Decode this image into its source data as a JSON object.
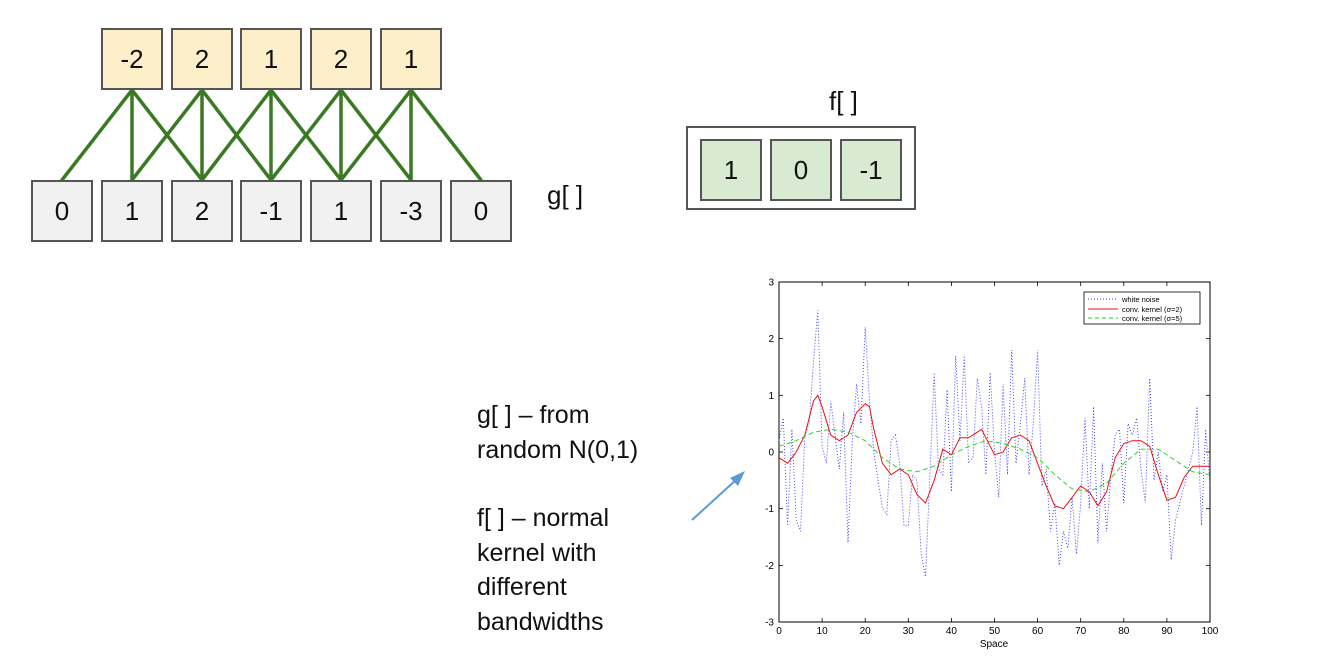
{
  "output_values": [
    "-2",
    "2",
    "1",
    "2",
    "1"
  ],
  "input_values": [
    "0",
    "1",
    "2",
    "-1",
    "1",
    "-3",
    "0"
  ],
  "kernel_values": [
    "1",
    "0",
    "-1"
  ],
  "labels": {
    "g": "g[ ]",
    "f": "f[ ]"
  },
  "description": {
    "line1": "g[ ] – from",
    "line2": "random N(0,1)",
    "line3": "f[ ] – normal",
    "line4": "kernel with",
    "line5": "different",
    "line6": "bandwidths"
  },
  "colors": {
    "connection": "#3b7a24",
    "output_fill": "#fcefc9",
    "input_fill": "#f1f1f1",
    "kernel_fill": "#d9ead3",
    "arrow": "#5b9bd5"
  },
  "chart_data": {
    "type": "line",
    "xlabel": "Space",
    "ylabel": "",
    "xlim": [
      0,
      100
    ],
    "ylim": [
      -3,
      3
    ],
    "x_ticks": [
      "0",
      "10",
      "20",
      "30",
      "40",
      "50",
      "60",
      "70",
      "80",
      "90",
      "100"
    ],
    "y_ticks": [
      "-3",
      "-2",
      "-1",
      "0",
      "1",
      "2",
      "3"
    ],
    "legend_position": "top-right",
    "legend": [
      "white noise",
      "conv. kernel (σ=2)",
      "conv. kernel (σ=5)"
    ],
    "series": [
      {
        "name": "white noise",
        "color": "#3333ff",
        "style": "dotted",
        "x": [
          0,
          1,
          2,
          3,
          4,
          5,
          6,
          7,
          8,
          9,
          10,
          11,
          12,
          13,
          14,
          15,
          16,
          17,
          18,
          19,
          20,
          21,
          22,
          23,
          24,
          25,
          26,
          27,
          28,
          29,
          30,
          31,
          32,
          33,
          34,
          35,
          36,
          37,
          38,
          39,
          40,
          41,
          42,
          43,
          44,
          45,
          46,
          47,
          48,
          49,
          50,
          51,
          52,
          53,
          54,
          55,
          56,
          57,
          58,
          59,
          60,
          61,
          62,
          63,
          64,
          65,
          66,
          67,
          68,
          69,
          70,
          71,
          72,
          73,
          74,
          75,
          76,
          77,
          78,
          79,
          80,
          81,
          82,
          83,
          84,
          85,
          86,
          87,
          88,
          89,
          90,
          91,
          92,
          93,
          94,
          95,
          96,
          97,
          98,
          99,
          100
        ],
        "y": [
          0.2,
          0.6,
          -1.3,
          0.4,
          -1.2,
          -1.4,
          0.3,
          0.5,
          1.6,
          2.5,
          0.1,
          -0.2,
          0.9,
          0.3,
          -0.3,
          0.7,
          -1.6,
          0.2,
          1.2,
          0.5,
          2.2,
          0.9,
          0.0,
          -0.5,
          -1.0,
          -1.1,
          0.2,
          0.3,
          -0.2,
          -1.3,
          -1.3,
          -0.4,
          -0.5,
          -1.8,
          -2.2,
          -0.4,
          1.4,
          -0.3,
          -0.4,
          1.1,
          -0.7,
          1.7,
          0.2,
          1.7,
          -0.2,
          -0.1,
          1.3,
          0.8,
          -0.4,
          1.4,
          0.0,
          -0.8,
          1.2,
          -0.4,
          1.8,
          -0.2,
          0.5,
          1.3,
          -0.4,
          0.5,
          1.8,
          -0.6,
          -0.3,
          -1.4,
          -0.9,
          -2.0,
          -1.4,
          -1.7,
          -0.8,
          -1.8,
          -0.9,
          0.6,
          -1.0,
          0.8,
          -1.6,
          -0.2,
          -1.4,
          -0.4,
          0.3,
          0.4,
          -0.9,
          0.5,
          0.3,
          0.6,
          -0.3,
          -0.9,
          1.3,
          -0.5,
          0.0,
          -0.7,
          -0.4,
          -1.9,
          -1.2,
          -0.9,
          -0.6,
          -0.3,
          0.0,
          0.8,
          -1.3,
          0.4,
          -0.6
        ]
      },
      {
        "name": "conv. kernel (σ=2)",
        "color": "#ee1111",
        "style": "solid",
        "x": [
          0,
          2,
          4,
          6,
          8,
          9,
          10,
          12,
          14,
          16,
          18,
          20,
          21,
          22,
          24,
          26,
          28,
          30,
          32,
          34,
          36,
          38,
          40,
          42,
          44,
          46,
          47,
          48,
          50,
          52,
          54,
          56,
          58,
          60,
          62,
          64,
          66,
          68,
          70,
          72,
          74,
          76,
          78,
          80,
          82,
          84,
          86,
          88,
          90,
          92,
          94,
          96,
          98,
          100
        ],
        "y": [
          -0.1,
          -0.2,
          0.0,
          0.3,
          0.9,
          1.0,
          0.8,
          0.3,
          0.2,
          0.3,
          0.7,
          0.85,
          0.8,
          0.4,
          -0.2,
          -0.4,
          -0.3,
          -0.4,
          -0.75,
          -0.9,
          -0.5,
          0.05,
          -0.05,
          0.25,
          0.25,
          0.35,
          0.4,
          0.25,
          -0.05,
          0.0,
          0.25,
          0.3,
          0.2,
          -0.2,
          -0.6,
          -0.95,
          -1.0,
          -0.8,
          -0.6,
          -0.7,
          -0.95,
          -0.7,
          -0.1,
          0.15,
          0.2,
          0.2,
          0.1,
          -0.4,
          -0.85,
          -0.8,
          -0.45,
          -0.25,
          -0.25,
          -0.25
        ]
      },
      {
        "name": "conv. kernel (σ=5)",
        "color": "#22cc22",
        "style": "dashed",
        "x": [
          0,
          4,
          8,
          12,
          16,
          20,
          24,
          28,
          32,
          36,
          40,
          44,
          48,
          52,
          56,
          60,
          64,
          68,
          72,
          76,
          80,
          84,
          88,
          92,
          96,
          100
        ],
        "y": [
          0.1,
          0.2,
          0.35,
          0.4,
          0.35,
          0.2,
          -0.1,
          -0.3,
          -0.35,
          -0.25,
          -0.05,
          0.1,
          0.2,
          0.15,
          0.05,
          -0.1,
          -0.4,
          -0.65,
          -0.7,
          -0.55,
          -0.2,
          0.05,
          0.05,
          -0.15,
          -0.35,
          -0.4
        ]
      }
    ]
  }
}
